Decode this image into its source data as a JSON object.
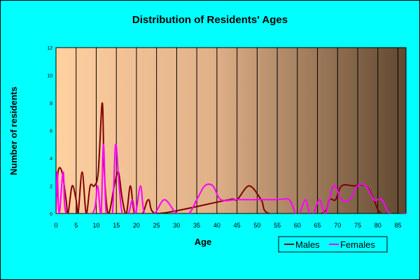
{
  "chart_data": {
    "type": "line",
    "title": "Distribution of Residents' Ages",
    "xlabel": "Age",
    "ylabel": "Number of residents",
    "xlim": [
      0,
      87
    ],
    "ylim": [
      0,
      12
    ],
    "x_ticks": [
      0,
      5,
      10,
      15,
      20,
      25,
      30,
      35,
      40,
      45,
      50,
      55,
      60,
      65,
      70,
      75,
      80,
      85
    ],
    "y_ticks": [
      0,
      2,
      4,
      6,
      8,
      10,
      12
    ],
    "grid": "vertical",
    "legend": "bottom-right",
    "series": [
      {
        "name": "Males",
        "color": "#800000",
        "points": [
          [
            0,
            0
          ],
          [
            0.5,
            3
          ],
          [
            1.5,
            3
          ],
          [
            2.5,
            1
          ],
          [
            3,
            0
          ],
          [
            4,
            2
          ],
          [
            5,
            1
          ],
          [
            5.5,
            0
          ],
          [
            6.5,
            3
          ],
          [
            7.5,
            0
          ],
          [
            8.5,
            2
          ],
          [
            9.5,
            2
          ],
          [
            10.5,
            3
          ],
          [
            11.5,
            8
          ],
          [
            12,
            3
          ],
          [
            13,
            0
          ],
          [
            14.5,
            2
          ],
          [
            15.5,
            3
          ],
          [
            16.5,
            1
          ],
          [
            17.5,
            0
          ],
          [
            18.5,
            2
          ],
          [
            19.5,
            0
          ],
          [
            21.5,
            0
          ],
          [
            23,
            1
          ],
          [
            25,
            0
          ],
          [
            43,
            1
          ],
          [
            45,
            1
          ],
          [
            48,
            2
          ],
          [
            51,
            1
          ],
          [
            53,
            0
          ],
          [
            66,
            0
          ],
          [
            68,
            1
          ],
          [
            69.5,
            1
          ],
          [
            71,
            2
          ],
          [
            74,
            2
          ],
          [
            77,
            2
          ],
          [
            79,
            1
          ],
          [
            81,
            0
          ],
          [
            87,
            0
          ]
        ]
      },
      {
        "name": "Females",
        "color": "#ff00ff",
        "points": [
          [
            0,
            0
          ],
          [
            0.3,
            3
          ],
          [
            0.8,
            0
          ],
          [
            1.8,
            3
          ],
          [
            2.5,
            0
          ],
          [
            9,
            0
          ],
          [
            10.3,
            2
          ],
          [
            11.2,
            0
          ],
          [
            11.8,
            5
          ],
          [
            12.5,
            0
          ],
          [
            14,
            0
          ],
          [
            14.8,
            5
          ],
          [
            15.7,
            2
          ],
          [
            16.5,
            0
          ],
          [
            18,
            0
          ],
          [
            19,
            1
          ],
          [
            19.8,
            0
          ],
          [
            21,
            2
          ],
          [
            22,
            0
          ],
          [
            24.5,
            0
          ],
          [
            27,
            1
          ],
          [
            30,
            0
          ],
          [
            33,
            0
          ],
          [
            35,
            1
          ],
          [
            37,
            2
          ],
          [
            39,
            2
          ],
          [
            41,
            1
          ],
          [
            45,
            1
          ],
          [
            50,
            1
          ],
          [
            55,
            1
          ],
          [
            58,
            1
          ],
          [
            59.5,
            0
          ],
          [
            60.5,
            0
          ],
          [
            62,
            1
          ],
          [
            63,
            0
          ],
          [
            64,
            0
          ],
          [
            65.5,
            1
          ],
          [
            67,
            0
          ],
          [
            69,
            2
          ],
          [
            71,
            1
          ],
          [
            73,
            1
          ],
          [
            75,
            2
          ],
          [
            77,
            2
          ],
          [
            79,
            1
          ],
          [
            81,
            1
          ],
          [
            83,
            0
          ],
          [
            87,
            0
          ]
        ]
      }
    ]
  }
}
